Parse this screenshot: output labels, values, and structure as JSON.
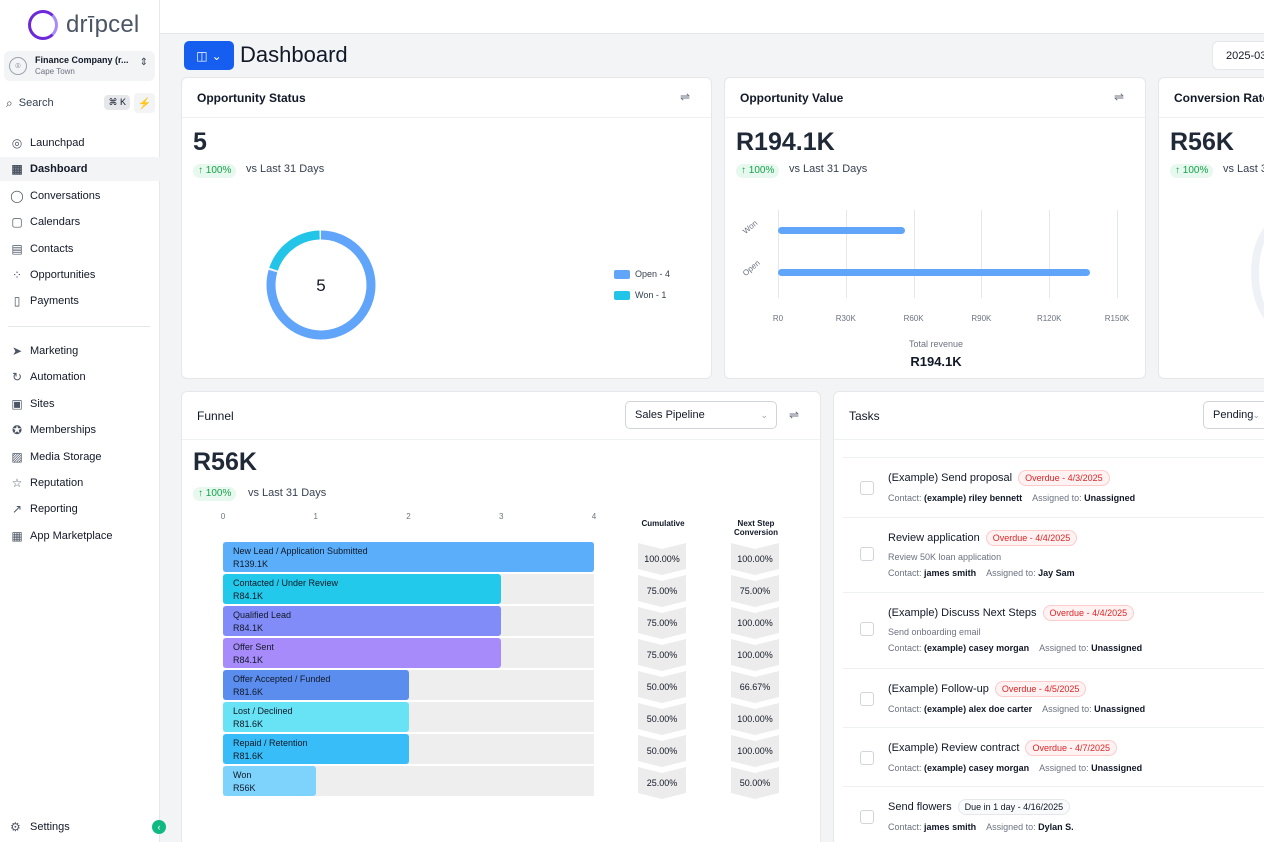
{
  "app": {
    "name": "drīpcel"
  },
  "company": {
    "name": "Finance Company (r...",
    "location": "Cape Town"
  },
  "search": {
    "label": "Search",
    "shortcut": "⌘ K"
  },
  "nav": {
    "group1": [
      {
        "label": "Launchpad",
        "icon": "rocket-icon",
        "glyph": "◎"
      },
      {
        "label": "Dashboard",
        "icon": "grid-icon",
        "glyph": "▦"
      },
      {
        "label": "Conversations",
        "icon": "chat-icon",
        "glyph": "◯"
      },
      {
        "label": "Calendars",
        "icon": "calendar-icon",
        "glyph": "▢"
      },
      {
        "label": "Contacts",
        "icon": "contacts-icon",
        "glyph": "▤"
      },
      {
        "label": "Opportunities",
        "icon": "opportunities-icon",
        "glyph": "⁘"
      },
      {
        "label": "Payments",
        "icon": "payments-icon",
        "glyph": "▯"
      }
    ],
    "group2": [
      {
        "label": "Marketing",
        "icon": "send-icon",
        "glyph": "➤"
      },
      {
        "label": "Automation",
        "icon": "automation-icon",
        "glyph": "↻"
      },
      {
        "label": "Sites",
        "icon": "sites-icon",
        "glyph": "▣"
      },
      {
        "label": "Memberships",
        "icon": "badge-icon",
        "glyph": "✪"
      },
      {
        "label": "Media Storage",
        "icon": "image-icon",
        "glyph": "▨"
      },
      {
        "label": "Reputation",
        "icon": "star-icon",
        "glyph": "☆"
      },
      {
        "label": "Reporting",
        "icon": "trend-icon",
        "glyph": "↗"
      },
      {
        "label": "App Marketplace",
        "icon": "apps-icon",
        "glyph": "▦"
      }
    ],
    "settings": "Settings"
  },
  "header": {
    "title": "Dashboard",
    "date": "2025-03"
  },
  "opportunity_status": {
    "title": "Opportunity Status",
    "value": "5",
    "change": "↑ 100%",
    "vs": "vs Last 31 Days",
    "center": "5",
    "legend": [
      {
        "label": "Open - 4",
        "color": "#60a5fa"
      },
      {
        "label": "Won - 1",
        "color": "#22c5e8"
      }
    ],
    "slices": [
      {
        "name": "Open",
        "value": 4
      },
      {
        "name": "Won",
        "value": 1
      }
    ]
  },
  "opportunity_value": {
    "title": "Opportunity Value",
    "value": "R194.1K",
    "change": "↑ 100%",
    "vs": "vs Last 31 Days",
    "total_label": "Total revenue",
    "total_value": "R194.1K",
    "chart_data": {
      "type": "bar",
      "orientation": "horizontal",
      "categories": [
        "Won",
        "Open"
      ],
      "values": [
        56000,
        138100
      ],
      "xticks": [
        "R0",
        "R30K",
        "R60K",
        "R90K",
        "R120K",
        "R150K"
      ],
      "xlim": [
        0,
        150000
      ],
      "color": "#60a5fa"
    }
  },
  "conversion_rate": {
    "title": "Conversion Rate",
    "value": "R56K",
    "change": "↑ 100%",
    "vs": "vs Last 3"
  },
  "funnel": {
    "title": "Funnel",
    "pipeline": "Sales Pipeline",
    "value": "R56K",
    "change": "↑ 100%",
    "vs": "vs Last 31 Days",
    "col_cumulative": "Cumulative",
    "col_next_1": "Next Step",
    "col_next_2": "Conversion",
    "chart_data": {
      "type": "bar",
      "orientation": "horizontal",
      "xticks": [
        "0",
        "1",
        "2",
        "3",
        "4"
      ],
      "xlim": [
        0,
        4
      ],
      "stages": [
        {
          "name": "New Lead / Application Submitted",
          "amount": "R139.1K",
          "count": 4,
          "color": "#5aaefa",
          "cumulative": "100.00%",
          "next": "100.00%"
        },
        {
          "name": "Contacted / Under Review",
          "amount": "R84.1K",
          "count": 3,
          "color": "#22c9ea",
          "cumulative": "75.00%",
          "next": "75.00%"
        },
        {
          "name": "Qualified Lead",
          "amount": "R84.1K",
          "count": 3,
          "color": "#818cf8",
          "cumulative": "75.00%",
          "next": "100.00%"
        },
        {
          "name": "Offer Sent",
          "amount": "R84.1K",
          "count": 3,
          "color": "#a78bfa",
          "cumulative": "75.00%",
          "next": "100.00%"
        },
        {
          "name": "Offer Accepted / Funded",
          "amount": "R81.6K",
          "count": 2,
          "color": "#5b8def",
          "cumulative": "50.00%",
          "next": "66.67%"
        },
        {
          "name": "Lost / Declined",
          "amount": "R81.6K",
          "count": 2,
          "color": "#67e3f5",
          "cumulative": "50.00%",
          "next": "100.00%"
        },
        {
          "name": "Repaid / Retention",
          "amount": "R81.6K",
          "count": 2,
          "color": "#38bdf8",
          "cumulative": "50.00%",
          "next": "100.00%"
        },
        {
          "name": "Won",
          "amount": "R56K",
          "count": 1,
          "color": "#7dd3fc",
          "cumulative": "25.00%",
          "next": "50.00%"
        }
      ]
    }
  },
  "tasks": {
    "title": "Tasks",
    "filter": "Pending",
    "items": [
      {
        "title": "(Example) Send proposal",
        "badge": "Overdue - 4/3/2025",
        "overdue": true,
        "sub": "",
        "contact": "(example) riley bennett",
        "assigned": "Unassigned"
      },
      {
        "title": "Review application",
        "badge": "Overdue - 4/4/2025",
        "overdue": true,
        "sub": "Review 50K loan application",
        "contact": "james smith",
        "assigned": "Jay Sam"
      },
      {
        "title": "(Example) Discuss Next Steps",
        "badge": "Overdue - 4/4/2025",
        "overdue": true,
        "sub": "Send onboarding email",
        "contact": "(example) casey morgan",
        "assigned": "Unassigned"
      },
      {
        "title": "(Example) Follow-up",
        "badge": "Overdue - 4/5/2025",
        "overdue": true,
        "sub": "",
        "contact": "(example) alex doe carter",
        "assigned": "Unassigned"
      },
      {
        "title": "(Example) Review contract",
        "badge": "Overdue - 4/7/2025",
        "overdue": true,
        "sub": "",
        "contact": "(example) casey morgan",
        "assigned": "Unassigned"
      },
      {
        "title": "Send flowers",
        "badge": "Due in 1 day - 4/16/2025",
        "overdue": false,
        "sub": "",
        "contact": "james smith",
        "assigned": "Dylan S."
      }
    ],
    "contact_label": "Contact:",
    "assigned_label": "Assigned to:"
  }
}
